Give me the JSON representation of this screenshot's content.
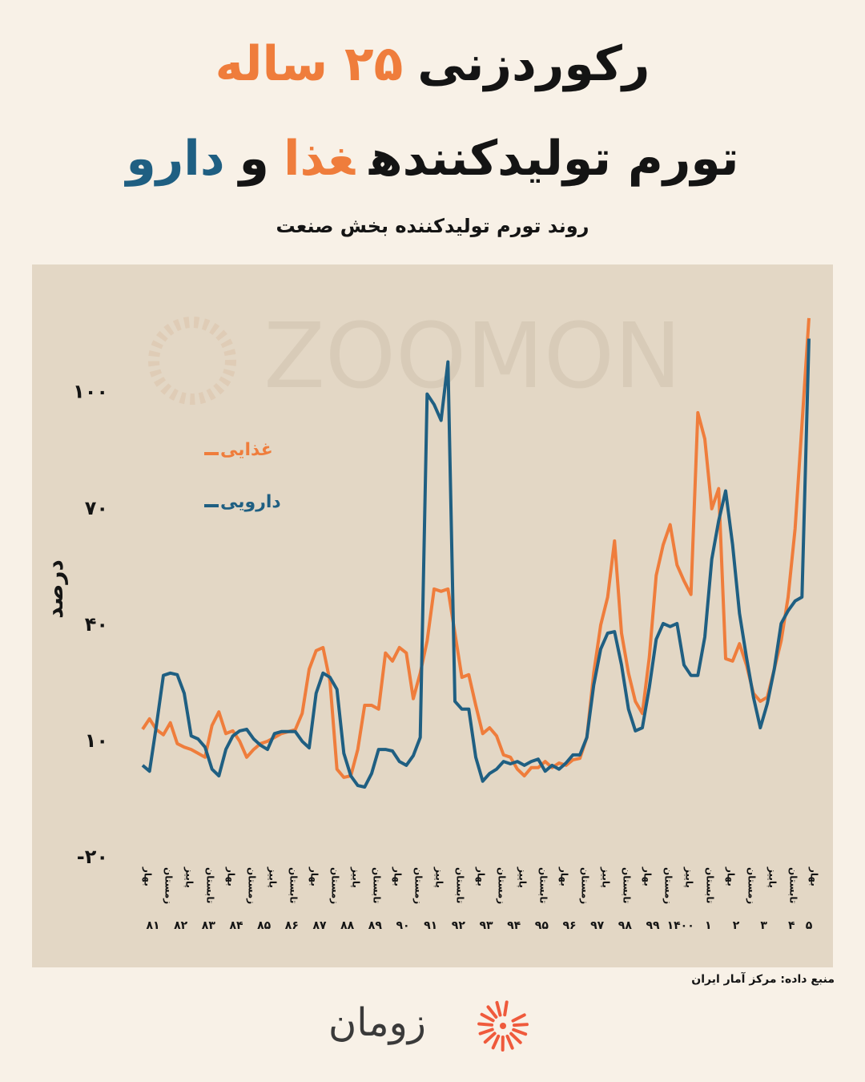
{
  "chart_data": {
    "type": "line",
    "title": [
      [
        {
          "text": "رکوردزنی",
          "color": "#141414"
        },
        {
          "text": "۲۵ ساله",
          "color": "#ef7d3c"
        }
      ],
      [
        {
          "text": "تورم تولیدکننده",
          "color": "#141414"
        },
        {
          "text": "غذا",
          "color": "#ef7d3c"
        },
        {
          "text": "و",
          "color": "#141414"
        },
        {
          "text": "دارو",
          "color": "#1f5f82"
        }
      ]
    ],
    "subtitle": "روند تورم تولیدکننده بخش صنعت",
    "watermark": "ZOOMON",
    "y_label": "درصد",
    "ylim": [
      -20,
      120
    ],
    "yticks": [
      {
        "value": -20,
        "label": "-۲۰"
      },
      {
        "value": 10,
        "label": "۱۰"
      },
      {
        "value": 40,
        "label": "۴۰"
      },
      {
        "value": 70,
        "label": "۷۰"
      },
      {
        "value": 100,
        "label": "۱۰۰"
      }
    ],
    "grid": false,
    "legend": "upper left",
    "categories": [
      "بهار",
      null,
      null,
      "زمستان",
      null,
      null,
      "پاییز",
      null,
      null,
      "تابستان",
      null,
      null,
      "بهار",
      null,
      null,
      "زمستان",
      null,
      null,
      "پاییز",
      null,
      null,
      "تابستان",
      null,
      null,
      "بهار",
      null,
      null,
      "زمستان",
      null,
      null,
      "پاییز",
      null,
      null,
      "تابستان",
      null,
      null,
      "بهار",
      null,
      null,
      "زمستان",
      null,
      null,
      "پاییز",
      null,
      null,
      "تابستان",
      null,
      null,
      "بهار",
      null,
      null,
      "زمستان",
      null,
      null,
      "پاییز",
      null,
      null,
      "تابستان",
      null,
      null,
      "بهار",
      null,
      null,
      "زمستان",
      null,
      null,
      "پاییز",
      null,
      null,
      "تابستان",
      null,
      null,
      "بهار",
      null,
      null,
      "زمستان",
      null,
      null,
      "پاییز",
      null,
      null,
      "تابستان",
      null,
      null,
      "بهار",
      null,
      null,
      "زمستان",
      null,
      null,
      "پاییز",
      null,
      null,
      "تابستان",
      null,
      null,
      "بهار"
    ],
    "year_labels": [
      "۸۱",
      "۸۲",
      "۸۳",
      "۸۴",
      "۸۵",
      "۸۶",
      "۸۷",
      "۸۸",
      "۸۹",
      "۹۰",
      "۹۱",
      "۹۲",
      "۹۳",
      "۹۴",
      "۹۵",
      "۹۶",
      "۹۷",
      "۹۸",
      "۹۹",
      "۱۴۰۰",
      "۱",
      "۲",
      "۳",
      "۴",
      "۵"
    ],
    "series": [
      {
        "name": "غذایی",
        "color": "#ef7d3c",
        "values": [
          13.1,
          15.8,
          13,
          11.7,
          14.8,
          9.4,
          8.5,
          7.9,
          6.9,
          5.9,
          14.1,
          17.6,
          12,
          12.7,
          10,
          5.9,
          7.9,
          9.4,
          10,
          11,
          12,
          12.5,
          13,
          17.2,
          28.6,
          33.4,
          34.2,
          25.5,
          2.8,
          0.7,
          1.1,
          7.9,
          19.3,
          19.3,
          18.3,
          32.8,
          30.7,
          34.2,
          32.8,
          21,
          27.6,
          35.9,
          49.3,
          48.7,
          49.3,
          37.9,
          26.5,
          27.2,
          19.3,
          12,
          13.5,
          11.4,
          6.5,
          5.9,
          2.8,
          1.1,
          3.2,
          3.2,
          4.8,
          3.2,
          4.4,
          3.8,
          5.2,
          5.6,
          11,
          27.6,
          40,
          47.2,
          61.7,
          37.9,
          27.6,
          20.3,
          17.2,
          31.7,
          52.8,
          60.7,
          65.9,
          55.5,
          51.4,
          47.9,
          94.8,
          88,
          70,
          75.2,
          31.3,
          30.7,
          35.2,
          29.7,
          22.4,
          20.3,
          21.4,
          28.6,
          35.9,
          47.2,
          64.8,
          91.7,
          119.2
        ]
      },
      {
        "name": "دارویی",
        "color": "#1f5f82",
        "values": [
          3.8,
          2.3,
          14.1,
          27,
          27.6,
          27.2,
          22.4,
          11.4,
          10.6,
          8.5,
          2.8,
          1.1,
          7.9,
          11.4,
          12.7,
          13.1,
          10.6,
          9,
          7.9,
          12,
          12.5,
          12.5,
          12.5,
          10,
          8.3,
          22.4,
          27.6,
          26.5,
          23.4,
          6.9,
          1.1,
          -1.4,
          -1.8,
          1.7,
          7.9,
          7.9,
          7.5,
          4.8,
          3.8,
          6.3,
          11,
          99.6,
          96.9,
          92.8,
          107.9,
          20.3,
          18.3,
          18.3,
          5.9,
          -0.3,
          1.7,
          2.8,
          4.8,
          4.2,
          4.8,
          3.8,
          4.8,
          5.4,
          2.3,
          3.8,
          2.8,
          4.4,
          6.5,
          6.5,
          11,
          24.5,
          33.8,
          37.9,
          38.3,
          29.7,
          18.3,
          12.7,
          13.5,
          23.9,
          36.3,
          40.4,
          39.6,
          40.4,
          29.7,
          27,
          27,
          36.9,
          57,
          66.9,
          74.6,
          60.7,
          43,
          31.7,
          21.4,
          13.5,
          19.7,
          28.6,
          40.4,
          43.7,
          46.2,
          47.2,
          113.9
        ]
      }
    ]
  },
  "footer": {
    "source": "منبع داده: مرکز آمار ایران",
    "brand": "زومان"
  }
}
